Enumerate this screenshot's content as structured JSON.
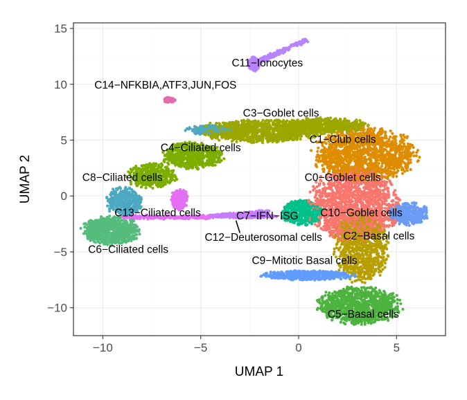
{
  "chart_data": {
    "type": "scatter",
    "xlabel": "UMAP 1",
    "ylabel": "UMAP 2",
    "xlim": [
      -11.5,
      7.5
    ],
    "ylim": [
      -12.5,
      15.5
    ],
    "x_ticks": [
      -10,
      -5,
      0,
      5
    ],
    "y_ticks": [
      -10,
      -5,
      0,
      5,
      10,
      15
    ],
    "x_tick_labels": [
      "−10",
      "−5",
      "0",
      "5"
    ],
    "y_tick_labels": [
      "−10",
      "−5",
      "0",
      "5",
      "10",
      "15"
    ],
    "grid": true,
    "clusters": [
      {
        "id": "C0",
        "label": "C0−Goblet cells",
        "color": "#F8766D",
        "label_pos": [
          2.25,
          1.35
        ],
        "regions": [
          {
            "c": [
              2.8,
              -0.8
            ],
            "r": [
              2.5,
              3.5
            ],
            "n": 1500
          }
        ]
      },
      {
        "id": "C1",
        "label": "C1−Club cells",
        "color": "#DE8C00",
        "label_pos": [
          2.25,
          4.75
        ],
        "regions": [
          {
            "c": [
              3.4,
              3.7
            ],
            "r": [
              2.9,
              2.6
            ],
            "n": 1400
          }
        ]
      },
      {
        "id": "C2",
        "label": "C2−Basal cells",
        "color": "#B79F00",
        "label_pos": [
          4.1,
          -3.9
        ],
        "regions": [
          {
            "c": [
              3.2,
              -4.5
            ],
            "r": [
              1.5,
              3.5
            ],
            "n": 900
          }
        ]
      },
      {
        "id": "C3",
        "label": "C3−Goblet cells",
        "color": "#9CA700",
        "label_pos": [
          -0.9,
          7.1
        ],
        "regions": [
          {
            "c": [
              -2.0,
              5.8
            ],
            "r": [
              3.4,
              1.1
            ],
            "n": 1000
          },
          {
            "c": [
              1.2,
              6.3
            ],
            "r": [
              2.6,
              0.75
            ],
            "n": 600
          }
        ]
      },
      {
        "id": "C4",
        "label": "C4−Ciliated cells",
        "color": "#7CAE00",
        "label_pos": [
          -5.0,
          4.0
        ],
        "regions": [
          {
            "c": [
              -5.4,
              3.6
            ],
            "r": [
              1.7,
              1.3
            ],
            "n": 600
          },
          {
            "c": [
              -7.5,
              1.8
            ],
            "r": [
              1.4,
              1.2
            ],
            "n": 400
          }
        ]
      },
      {
        "id": "C5",
        "label": "C5−Basal cells",
        "color": "#4CB43E",
        "label_pos": [
          3.3,
          -10.9
        ],
        "regions": [
          {
            "c": [
              3.1,
              -9.8
            ],
            "r": [
              2.3,
              1.8
            ],
            "n": 1000
          }
        ]
      },
      {
        "id": "C6",
        "label": "C6−Ciliated cells",
        "color": "#55BC7C",
        "label_pos": [
          -8.7,
          -5.1
        ],
        "regions": [
          {
            "c": [
              -9.6,
              -3.1
            ],
            "r": [
              1.6,
              1.4
            ],
            "n": 800
          }
        ]
      },
      {
        "id": "C7",
        "label": "C7−IFN−ISG",
        "color": "#00C08B",
        "label_pos": [
          -1.6,
          -2.1
        ],
        "regions": [
          {
            "c": [
              0.2,
              -1.5
            ],
            "r": [
              1.2,
              1.2
            ],
            "n": 500
          }
        ]
      },
      {
        "id": "C8",
        "label": "C8−Ciliated cells",
        "color": "#4DA8C2",
        "label_pos": [
          -9.0,
          1.35
        ],
        "regions": [
          {
            "c": [
              -8.9,
              -0.5
            ],
            "r": [
              1.0,
              1.4
            ],
            "n": 400
          },
          {
            "c": [
              -4.5,
              5.9
            ],
            "r": [
              1.4,
              0.45
            ],
            "n": 200
          }
        ]
      },
      {
        "id": "C9",
        "label": "C9−Mitotic Basal cells",
        "color": "#619CFF",
        "label_pos": [
          0.3,
          -6.1
        ],
        "regions": [
          {
            "c": [
              0.5,
              -7.1
            ],
            "r": [
              2.6,
              0.45
            ],
            "n": 500
          }
        ]
      },
      {
        "id": "C10",
        "label": "C10−Goblet cells",
        "color": "#6B9BF2",
        "label_pos": [
          3.2,
          -1.8
        ],
        "regions": [
          {
            "c": [
              5.6,
              -1.6
            ],
            "r": [
              1.1,
              1.1
            ],
            "n": 400
          }
        ]
      },
      {
        "id": "C11",
        "label": "C11−Ionocytes",
        "color": "#B983FF",
        "label_pos": [
          -1.6,
          11.6
        ],
        "regions": [
          {
            "c": [
              -2.3,
              11.8
            ],
            "r": [
              0.3,
              0.7
            ],
            "n": 150
          }
        ]
      },
      {
        "id": "C12",
        "label": "C12−Deuterosomal cells",
        "color": "#C77CFF",
        "label_pos": [
          -1.8,
          -4.0
        ],
        "regions": [
          {
            "c": [
              -2.8,
              -1.8
            ],
            "r": [
              1.8,
              0.2
            ],
            "n": 250
          }
        ]
      },
      {
        "id": "C13",
        "label": "C13−Ciliated cells",
        "color": "#E36FF5",
        "label_pos": [
          -7.2,
          -1.8
        ],
        "regions": [
          {
            "c": [
              -6.1,
              -0.3
            ],
            "r": [
              0.5,
              1.0
            ],
            "n": 250
          }
        ]
      },
      {
        "id": "C14",
        "label": "C14−NFKBIA,ATF3,JUN,FOS",
        "color": "#E26AAE",
        "label_pos": [
          -6.8,
          9.6
        ],
        "regions": [
          {
            "c": [
              -6.6,
              8.6
            ],
            "r": [
              0.35,
              0.25
            ],
            "n": 60
          }
        ]
      }
    ],
    "paths": [
      {
        "cluster": "C11",
        "from": [
          -2.3,
          11.8
        ],
        "to": [
          0.4,
          14.0
        ],
        "n": 220,
        "jitter": 0.2
      },
      {
        "cluster": "C13",
        "from": [
          -9.0,
          -1.9
        ],
        "to": [
          -4.5,
          -1.9
        ],
        "n": 260,
        "jitter": 0.15
      },
      {
        "cluster": "C12",
        "from": [
          -4.5,
          -1.8
        ],
        "to": [
          -1.5,
          -1.4
        ],
        "n": 200,
        "jitter": 0.15
      }
    ],
    "leader_line": {
      "from": [
        -3.0,
        -3.3
      ],
      "to": [
        -3.2,
        -2.2
      ]
    }
  }
}
